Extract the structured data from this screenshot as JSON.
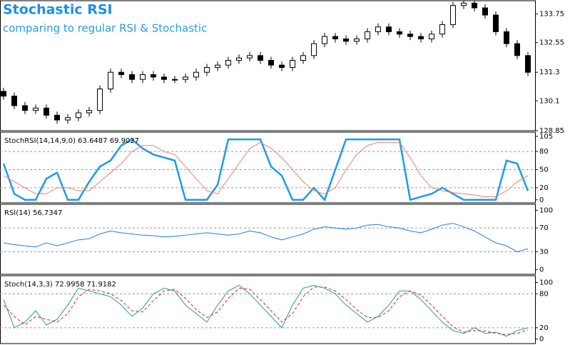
{
  "chart_data": [
    {
      "type": "candlestick",
      "title": "Stochastic RSI",
      "subtitle": "comparing to regular RSI & Stochastic",
      "ylim": [
        128.85,
        134.3
      ],
      "yticks": [
        128.85,
        130.1,
        131.3,
        132.55,
        133.75
      ],
      "up_color": "#ffffff",
      "down_color": "#000000",
      "open": [
        130.5,
        130.3,
        129.9,
        129.7,
        129.8,
        129.5,
        129.3,
        129.4,
        129.6,
        129.7,
        130.6,
        131.3,
        131.2,
        131.0,
        131.2,
        131.1,
        131.0,
        131.0,
        131.1,
        131.3,
        131.5,
        131.6,
        131.8,
        131.9,
        132.0,
        131.8,
        131.6,
        131.5,
        131.8,
        132.0,
        132.5,
        132.8,
        132.7,
        132.6,
        132.7,
        133.0,
        133.2,
        133.0,
        132.9,
        132.8,
        132.7,
        132.9,
        133.3,
        134.1,
        134.2,
        134.0,
        133.7,
        133.0,
        132.5,
        132.0
      ],
      "high": [
        130.65,
        130.45,
        130.05,
        129.95,
        129.95,
        129.65,
        129.55,
        129.75,
        129.85,
        130.75,
        131.45,
        131.45,
        131.35,
        131.35,
        131.35,
        131.25,
        131.15,
        131.25,
        131.45,
        131.65,
        131.75,
        131.95,
        132.05,
        132.15,
        132.15,
        131.95,
        131.75,
        131.95,
        132.15,
        132.65,
        132.95,
        132.95,
        132.85,
        132.85,
        133.15,
        133.35,
        133.35,
        133.15,
        133.05,
        132.95,
        133.05,
        133.45,
        134.25,
        134.3,
        134.3,
        134.15,
        133.85,
        133.15,
        132.65,
        132.15
      ],
      "low": [
        130.15,
        129.75,
        129.55,
        129.55,
        129.35,
        129.15,
        129.15,
        129.25,
        129.45,
        129.55,
        130.45,
        131.05,
        130.85,
        130.85,
        130.95,
        130.85,
        130.85,
        130.85,
        130.95,
        131.15,
        131.35,
        131.45,
        131.65,
        131.75,
        131.65,
        131.45,
        131.35,
        131.35,
        131.65,
        131.85,
        132.35,
        132.55,
        132.45,
        132.45,
        132.55,
        132.85,
        132.85,
        132.75,
        132.65,
        132.55,
        132.55,
        132.75,
        133.15,
        133.95,
        133.85,
        133.55,
        132.85,
        132.35,
        131.85,
        131.15
      ],
      "close": [
        130.3,
        129.9,
        129.7,
        129.8,
        129.5,
        129.3,
        129.4,
        129.6,
        129.7,
        130.6,
        131.3,
        131.2,
        131.0,
        131.2,
        131.1,
        131.0,
        131.0,
        131.1,
        131.3,
        131.5,
        131.6,
        131.8,
        131.9,
        132.0,
        131.8,
        131.6,
        131.5,
        131.8,
        132.0,
        132.5,
        132.8,
        132.7,
        132.6,
        132.7,
        133.0,
        133.2,
        133.0,
        132.9,
        132.8,
        132.7,
        132.9,
        133.3,
        134.1,
        134.2,
        134.0,
        133.7,
        133.0,
        132.5,
        132.0,
        131.3
      ]
    },
    {
      "type": "line",
      "title": "StochRSI(14,14,9,0) 63.6487 69.9027",
      "ylim": [
        -5,
        112
      ],
      "yticks": [
        105,
        80,
        50,
        20,
        0
      ],
      "levels": [
        80,
        50,
        20
      ],
      "series": [
        {
          "color": "#1e9be8",
          "width": 2.5,
          "values": [
            60,
            10,
            0,
            0,
            35,
            45,
            0,
            0,
            30,
            55,
            65,
            90,
            100,
            85,
            75,
            70,
            65,
            0,
            0,
            0,
            25,
            100,
            100,
            100,
            100,
            55,
            40,
            0,
            0,
            20,
            0,
            50,
            100,
            100,
            100,
            100,
            100,
            100,
            0,
            5,
            10,
            20,
            10,
            0,
            0,
            0,
            0,
            65,
            60,
            15
          ]
        },
        {
          "color": "#f08070",
          "width": 1,
          "values": [
            40,
            30,
            20,
            10,
            10,
            20,
            20,
            15,
            15,
            30,
            45,
            60,
            80,
            90,
            90,
            80,
            75,
            55,
            35,
            15,
            10,
            35,
            60,
            85,
            95,
            85,
            70,
            50,
            30,
            15,
            10,
            20,
            50,
            75,
            90,
            95,
            95,
            95,
            70,
            40,
            20,
            15,
            12,
            10,
            8,
            5,
            5,
            15,
            30,
            40
          ]
        }
      ]
    },
    {
      "type": "line",
      "title": "RSI(14) 56.7347",
      "ylim": [
        -8,
        110
      ],
      "yticks": [
        100,
        70,
        30,
        0
      ],
      "levels": [
        70,
        30
      ],
      "series": [
        {
          "color": "#1e7fe0",
          "width": 1,
          "values": [
            45,
            42,
            40,
            38,
            45,
            40,
            45,
            50,
            52,
            60,
            65,
            62,
            60,
            58,
            57,
            55,
            56,
            58,
            60,
            62,
            60,
            58,
            60,
            65,
            62,
            55,
            50,
            55,
            60,
            68,
            72,
            70,
            68,
            70,
            75,
            76,
            72,
            70,
            65,
            62,
            68,
            75,
            78,
            72,
            65,
            55,
            45,
            40,
            30,
            35
          ]
        }
      ]
    },
    {
      "type": "line",
      "title": "Stoch(14,3,3) 72.9958 71.9182",
      "ylim": [
        -8,
        112
      ],
      "yticks": [
        100,
        80,
        20,
        0
      ],
      "levels": [
        80,
        20
      ],
      "series": [
        {
          "color": "#20a090",
          "width": 1,
          "values": [
            70,
            20,
            30,
            50,
            25,
            35,
            60,
            90,
            85,
            80,
            75,
            60,
            40,
            55,
            80,
            90,
            85,
            60,
            45,
            30,
            60,
            85,
            95,
            80,
            60,
            40,
            20,
            60,
            90,
            95,
            90,
            80,
            60,
            45,
            30,
            40,
            60,
            85,
            85,
            70,
            50,
            30,
            15,
            10,
            20,
            10,
            12,
            5,
            15,
            20
          ]
        },
        {
          "color": "#e02020",
          "width": 1,
          "dashed": true,
          "values": [
            60,
            40,
            25,
            40,
            35,
            30,
            45,
            75,
            88,
            85,
            80,
            68,
            50,
            48,
            68,
            85,
            88,
            72,
            52,
            38,
            48,
            72,
            90,
            88,
            70,
            50,
            30,
            45,
            75,
            92,
            92,
            85,
            70,
            52,
            38,
            38,
            50,
            75,
            85,
            78,
            60,
            40,
            22,
            12,
            15,
            14,
            10,
            8,
            10,
            16
          ]
        }
      ]
    }
  ]
}
